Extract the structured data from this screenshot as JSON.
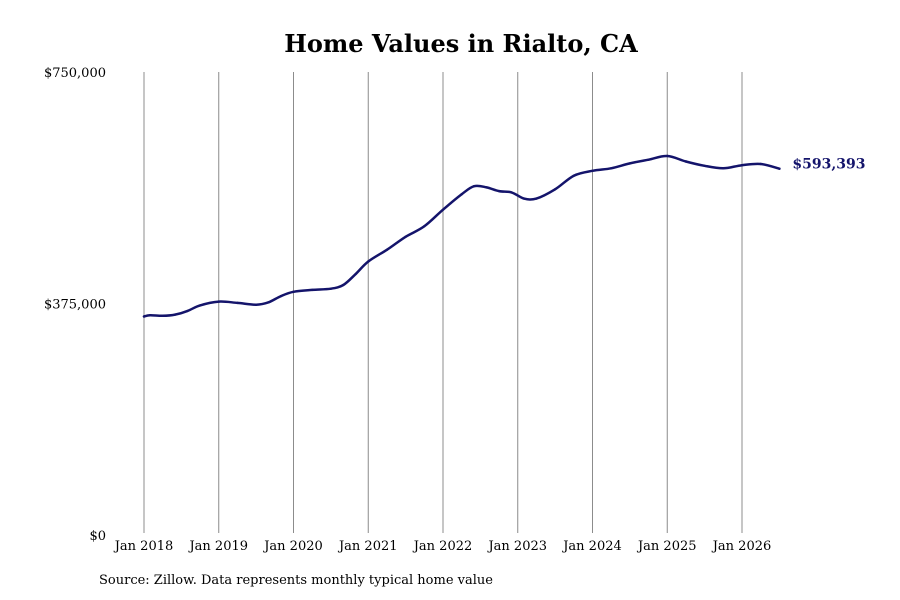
{
  "chart_data": {
    "type": "line",
    "title": "Home Values in Rialto, CA",
    "xlabel": "",
    "ylabel": "",
    "ylim": [
      0,
      750000
    ],
    "y_ticks": [
      {
        "value": 0,
        "label": "$0"
      },
      {
        "value": 375000,
        "label": "$375,000"
      },
      {
        "value": 750000,
        "label": "$750,000"
      }
    ],
    "x_ticks": [
      "Jan 2018",
      "Jan 2019",
      "Jan 2020",
      "Jan 2021",
      "Jan 2022",
      "Jan 2023",
      "Jan 2024",
      "Jan 2025",
      "Jan 2026"
    ],
    "grid": "vertical lines at each x tick",
    "series": [
      {
        "color": "#14146b",
        "end_label": "$593,393",
        "points": [
          [
            "2018-01",
            354000
          ],
          [
            "2018-02",
            356000
          ],
          [
            "2018-04",
            355000
          ],
          [
            "2018-06",
            357000
          ],
          [
            "2018-08",
            363000
          ],
          [
            "2018-10",
            372000
          ],
          [
            "2019-01",
            378000
          ],
          [
            "2019-04",
            376000
          ],
          [
            "2019-07",
            373000
          ],
          [
            "2019-09",
            377000
          ],
          [
            "2019-11",
            387000
          ],
          [
            "2020-01",
            394000
          ],
          [
            "2020-04",
            397000
          ],
          [
            "2020-07",
            399000
          ],
          [
            "2020-09",
            405000
          ],
          [
            "2020-11",
            423000
          ],
          [
            "2021-01",
            443000
          ],
          [
            "2021-04",
            462000
          ],
          [
            "2021-07",
            483000
          ],
          [
            "2021-10",
            500000
          ],
          [
            "2022-01",
            527000
          ],
          [
            "2022-04",
            552000
          ],
          [
            "2022-06",
            565000
          ],
          [
            "2022-08",
            563000
          ],
          [
            "2022-10",
            557000
          ],
          [
            "2022-12",
            555000
          ],
          [
            "2023-02",
            545000
          ],
          [
            "2023-04",
            545000
          ],
          [
            "2023-07",
            560000
          ],
          [
            "2023-10",
            582000
          ],
          [
            "2024-01",
            590000
          ],
          [
            "2024-04",
            594000
          ],
          [
            "2024-07",
            602000
          ],
          [
            "2024-10",
            608000
          ],
          [
            "2025-01",
            614000
          ],
          [
            "2025-04",
            605000
          ],
          [
            "2025-07",
            598000
          ],
          [
            "2025-10",
            594000
          ],
          [
            "2026-01",
            599000
          ],
          [
            "2026-04",
            601000
          ],
          [
            "2026-07",
            593393
          ]
        ]
      }
    ]
  },
  "source_note": "Source: Zillow. Data represents monthly typical home value"
}
